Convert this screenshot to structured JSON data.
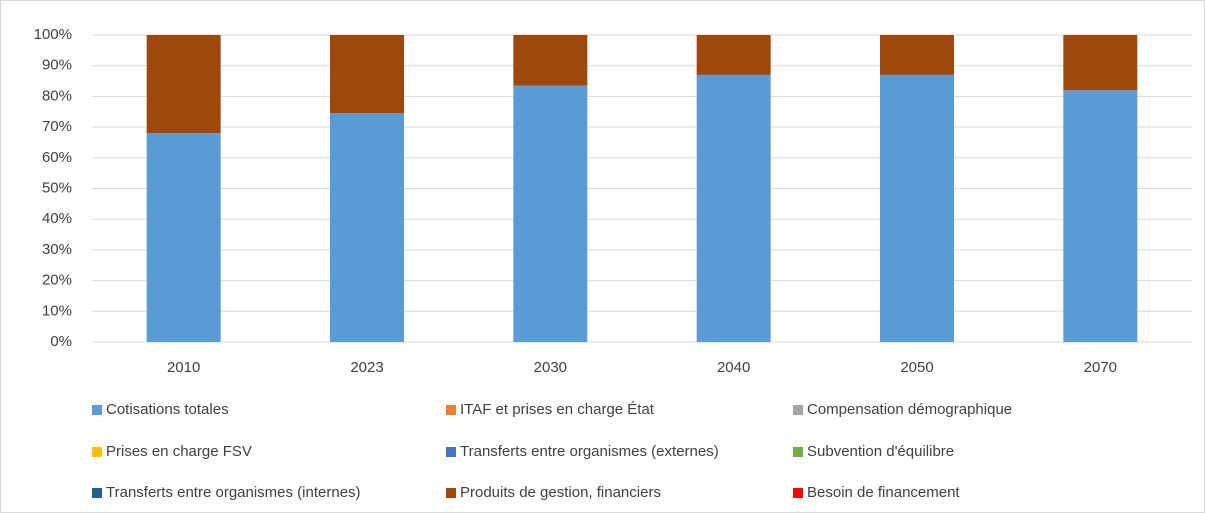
{
  "chart_data": {
    "type": "bar",
    "stacked": true,
    "categories": [
      "2010",
      "2023",
      "2030",
      "2040",
      "2050",
      "2070"
    ],
    "series": [
      {
        "name": "Cotisations totales",
        "color": "#5b9bd5",
        "values": [
          68,
          74.5,
          83.5,
          87,
          87,
          82
        ]
      },
      {
        "name": "ITAF et prises en charge État",
        "color": "#ed7d31",
        "values": [
          0,
          0,
          0,
          0,
          0,
          0
        ]
      },
      {
        "name": "Compensation démographique",
        "color": "#a5a5a5",
        "values": [
          0,
          0,
          0,
          0,
          0,
          0
        ]
      },
      {
        "name": "Prises en charge FSV",
        "color": "#ffc000",
        "values": [
          0,
          0,
          0,
          0,
          0,
          0
        ]
      },
      {
        "name": "Transferts entre organismes (externes)",
        "color": "#4472c4",
        "values": [
          0,
          0,
          0,
          0,
          0,
          0
        ]
      },
      {
        "name": "Subvention d'équilibre",
        "color": "#70ad47",
        "values": [
          0,
          0,
          0,
          0,
          0,
          0
        ]
      },
      {
        "name": "Transferts entre organismes (internes)",
        "color": "#255e91",
        "values": [
          0,
          0,
          0,
          0,
          0,
          0
        ]
      },
      {
        "name": "Produits de gestion, financiers",
        "color": "#9e480e",
        "values": [
          32,
          25.5,
          16.5,
          13,
          13,
          18
        ]
      },
      {
        "name": "Besoin de financement",
        "color": "#ff0000",
        "values": [
          0,
          0,
          0,
          0,
          0,
          0
        ]
      }
    ],
    "ylim": [
      0,
      100
    ],
    "yticks": [
      {
        "value": 0,
        "label": "0%"
      },
      {
        "value": 10,
        "label": "10%"
      },
      {
        "value": 20,
        "label": "20%"
      },
      {
        "value": 30,
        "label": "30%"
      },
      {
        "value": 40,
        "label": "40%"
      },
      {
        "value": 50,
        "label": "50%"
      },
      {
        "value": 60,
        "label": "60%"
      },
      {
        "value": 70,
        "label": "70%"
      },
      {
        "value": 80,
        "label": "80%"
      },
      {
        "value": 90,
        "label": "90%"
      },
      {
        "value": 100,
        "label": "100%"
      }
    ],
    "grid": true
  }
}
